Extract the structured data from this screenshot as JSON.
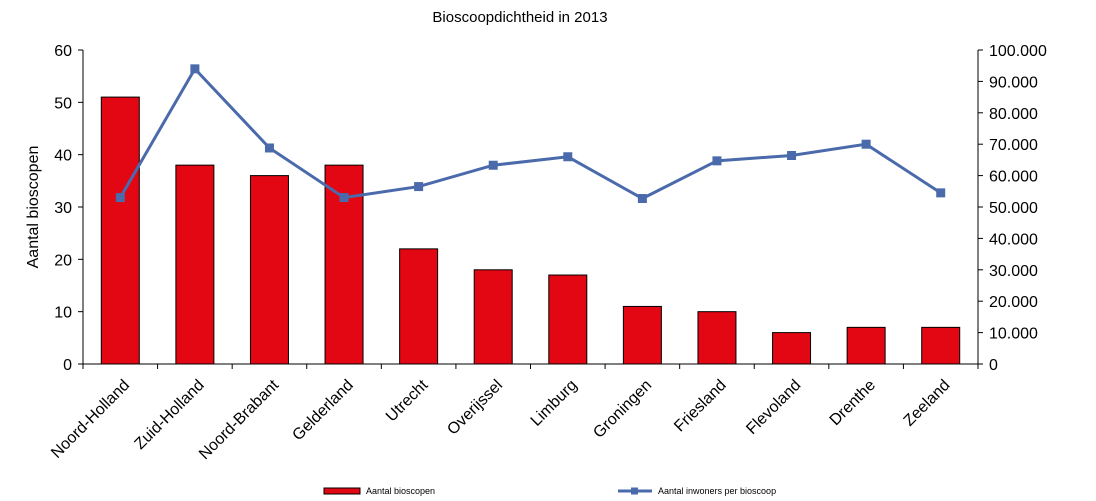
{
  "chart_data": {
    "type": "bar",
    "title": "Bioscoopdichtheid in 2013",
    "ylabel": "Aantal bioscopen",
    "y2label": "",
    "ylim": [
      0,
      60
    ],
    "y2lim": [
      0,
      100000
    ],
    "yticks": [
      "0",
      "10",
      "20",
      "30",
      "40",
      "50",
      "60"
    ],
    "y2ticks": [
      "0",
      "10.000",
      "20.000",
      "30.000",
      "40.000",
      "50.000",
      "60.000",
      "70.000",
      "80.000",
      "90.000",
      "100.000"
    ],
    "categories": [
      "Noord-Holland",
      "Zuid-Holland",
      "Noord-Brabant",
      "Gelderland",
      "Utrecht",
      "Overijssel",
      "Limburg",
      "Groningen",
      "Friesland",
      "Flevoland",
      "Drenthe",
      "Zeeland"
    ],
    "series": [
      {
        "name": "Aantal bioscopen",
        "type": "bar",
        "axis": "left",
        "color": "#e30613",
        "values": [
          51,
          38,
          36,
          38,
          22,
          18,
          17,
          11,
          10,
          6,
          7,
          7
        ]
      },
      {
        "name": "Aantal inwoners per bioscoop",
        "type": "line",
        "axis": "right",
        "color": "#4a6aab",
        "values": [
          53000,
          94000,
          68800,
          53000,
          56500,
          63300,
          66000,
          52700,
          64700,
          66400,
          70000,
          54500
        ]
      }
    ],
    "grid": false,
    "legend": "bottom"
  }
}
